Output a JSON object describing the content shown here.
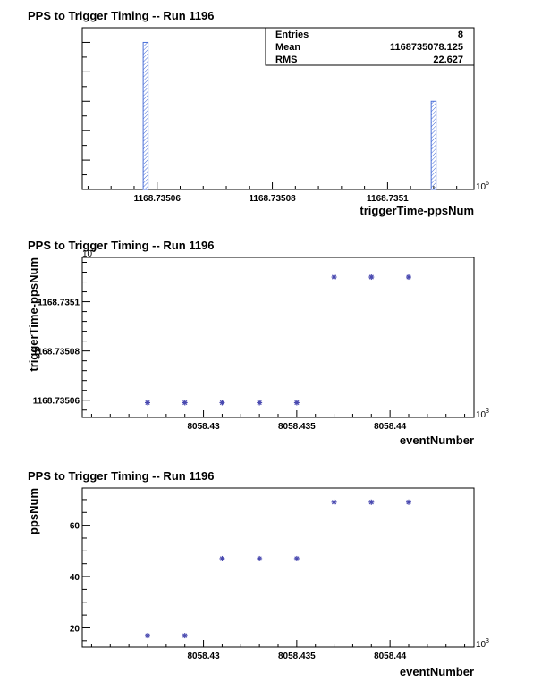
{
  "chart_data": [
    {
      "type": "bar",
      "title": "PPS to Trigger Timing -- Run 1196",
      "xlabel": "triggerTime-ppsNum",
      "ylabel": "",
      "x_multiplier": "10",
      "x_multiplier_exp": "6",
      "xlim": [
        1168.735047,
        1168.735115
      ],
      "ylim": [
        0,
        5.5
      ],
      "x_ticks": [
        1168.73506,
        1168.73508,
        1168.7351
      ],
      "x_tick_labels": [
        "1168.73506",
        "1168.73508",
        "1168.7351"
      ],
      "bars": [
        {
          "x": 1168.735058,
          "value": 5
        },
        {
          "x": 1168.735108,
          "value": 3
        }
      ],
      "stats": {
        "entries_label": "Entries",
        "entries_value": "8",
        "mean_label": "Mean",
        "mean_value": "1168735078.125",
        "rms_label": "RMS",
        "rms_value": "22.627"
      },
      "color": "#4a6fd8"
    },
    {
      "type": "scatter",
      "title": "PPS to Trigger Timing -- Run 1196",
      "xlabel": "eventNumber",
      "ylabel": "triggerTime-ppsNum",
      "x_multiplier": "10",
      "x_multiplier_exp": "3",
      "y_multiplier": "10",
      "y_multiplier_exp": "6",
      "xlim": [
        8058.4235,
        8058.4445
      ],
      "ylim": [
        1168.735053,
        1168.735118
      ],
      "x_ticks": [
        8058.43,
        8058.435,
        8058.44
      ],
      "x_tick_labels": [
        "8058.43",
        "8058.435",
        "8058.44"
      ],
      "y_ticks": [
        1168.73506,
        1168.73508,
        1168.7351
      ],
      "y_tick_labels": [
        "1168.73506",
        "1168.73508",
        "1168.7351"
      ],
      "x": [
        8058.427,
        8058.429,
        8058.431,
        8058.433,
        8058.435,
        8058.437,
        8058.439,
        8058.441
      ],
      "y": [
        1168.735059,
        1168.735059,
        1168.735059,
        1168.735059,
        1168.735059,
        1168.73511,
        1168.73511,
        1168.73511
      ],
      "color": "#4a4ab0"
    },
    {
      "type": "scatter",
      "title": "PPS to Trigger Timing -- Run 1196",
      "xlabel": "eventNumber",
      "ylabel": "ppsNum",
      "x_multiplier": "10",
      "x_multiplier_exp": "3",
      "xlim": [
        8058.4235,
        8058.4445
      ],
      "ylim": [
        12.5,
        74.5
      ],
      "x_ticks": [
        8058.43,
        8058.435,
        8058.44
      ],
      "x_tick_labels": [
        "8058.43",
        "8058.435",
        "8058.44"
      ],
      "y_ticks": [
        20,
        40,
        60
      ],
      "y_tick_labels": [
        "20",
        "40",
        "60"
      ],
      "x": [
        8058.427,
        8058.429,
        8058.431,
        8058.433,
        8058.435,
        8058.437,
        8058.439,
        8058.441
      ],
      "y": [
        17,
        17,
        47,
        47,
        47,
        69,
        69,
        69
      ],
      "color": "#4a4ab0"
    }
  ]
}
